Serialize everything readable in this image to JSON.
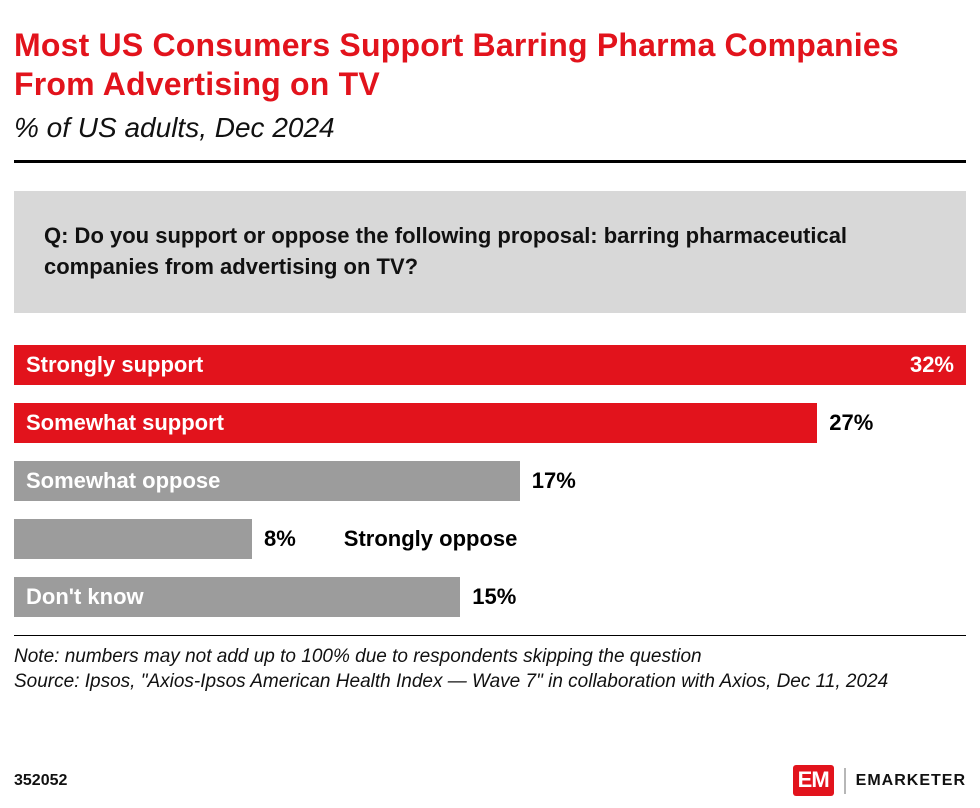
{
  "header": {
    "title": "Most US Consumers Support Barring Pharma Companies From Advertising on TV",
    "subtitle": "% of US adults, Dec 2024"
  },
  "question": {
    "text": "Q: Do you support or oppose the following proposal: barring pharmaceutical companies from advertising on TV?"
  },
  "chart_data": {
    "type": "bar",
    "orientation": "horizontal",
    "title": "Most US Consumers Support Barring Pharma Companies From Advertising on TV",
    "subtitle": "% of US adults, Dec 2024",
    "xlim": [
      0,
      32
    ],
    "categories": [
      "Strongly support",
      "Somewhat support",
      "Somewhat oppose",
      "Strongly oppose",
      "Don't know"
    ],
    "values": [
      32,
      27,
      17,
      8,
      15
    ],
    "colors": {
      "support": "#e2131c",
      "other": "#9c9c9c"
    },
    "bars": [
      {
        "label": "Strongly support",
        "value": 32,
        "display": "32%",
        "color": "#e2131c",
        "label_position": "inside",
        "value_position": "inside"
      },
      {
        "label": "Somewhat support",
        "value": 27,
        "display": "27%",
        "color": "#e2131c",
        "label_position": "inside",
        "value_position": "outside"
      },
      {
        "label": "Somewhat oppose",
        "value": 17,
        "display": "17%",
        "color": "#9c9c9c",
        "label_position": "inside",
        "value_position": "outside"
      },
      {
        "label": "Strongly oppose",
        "value": 8,
        "display": "8%",
        "color": "#9c9c9c",
        "label_position": "outside",
        "value_position": "outside"
      },
      {
        "label": "Don't know",
        "value": 15,
        "display": "15%",
        "color": "#9c9c9c",
        "label_position": "inside",
        "value_position": "outside"
      }
    ]
  },
  "note": {
    "note_line": "Note: numbers may not add up to 100% due to respondents skipping the question",
    "source_line": "Source: Ipsos, \"Axios-Ipsos American Health Index — Wave 7\" in collaboration with Axios, Dec 11, 2024"
  },
  "footer": {
    "chart_id": "352052",
    "logo_em": "EM",
    "logo_text": "EMARKETER"
  }
}
